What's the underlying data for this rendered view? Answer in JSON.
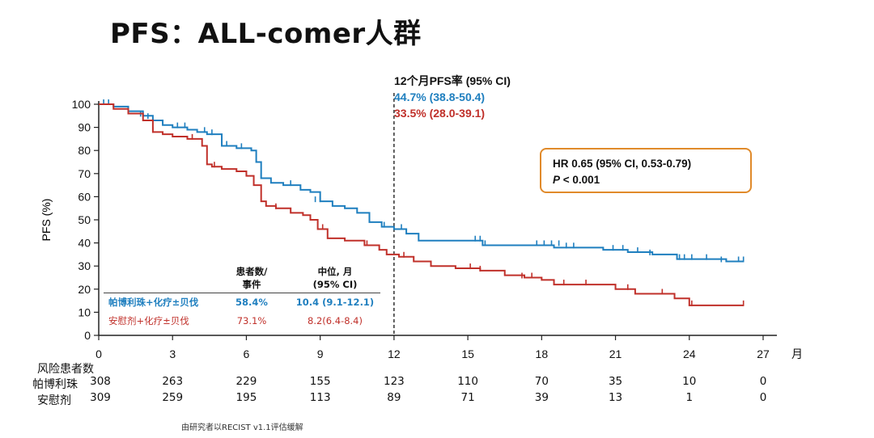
{
  "title": "PFS：ALL-comer人群",
  "chart_data": {
    "type": "line",
    "subtype": "kaplan-meier",
    "xlabel": "",
    "x_unit_label": "月",
    "ylabel": "PFS (%)",
    "xlim": [
      0,
      27
    ],
    "ylim": [
      0,
      100
    ],
    "x_ticks": [
      0,
      3,
      6,
      9,
      12,
      15,
      18,
      21,
      24,
      27
    ],
    "y_ticks": [
      0,
      10,
      20,
      30,
      40,
      50,
      60,
      70,
      80,
      90,
      100
    ],
    "reference_line_x": 12,
    "series": [
      {
        "name": "帕博利珠+化疗±贝伐",
        "color": "#1f7fbf",
        "x": [
          0,
          0.6,
          1.2,
          1.8,
          2.2,
          2.6,
          3.0,
          3.6,
          4.0,
          4.4,
          5.0,
          5.6,
          6.2,
          6.4,
          6.6,
          7.0,
          7.5,
          8.2,
          8.6,
          9.0,
          9.5,
          10.0,
          10.5,
          11.0,
          11.5,
          12.0,
          12.5,
          13.0,
          14.0,
          15.0,
          15.6,
          16.5,
          17.5,
          18.5,
          19.5,
          20.5,
          21.5,
          22.5,
          23.5,
          24.5,
          25.5,
          26.2
        ],
        "y": [
          100,
          99,
          97,
          95,
          93,
          91,
          90,
          89,
          88,
          87,
          82,
          81,
          80,
          75,
          68,
          66,
          65,
          63,
          62,
          58,
          56,
          55,
          53,
          49,
          47,
          46,
          44,
          41,
          41,
          41,
          39,
          39,
          39,
          38,
          38,
          37,
          36,
          35,
          33,
          33,
          32,
          32
        ],
        "censor_x": [
          0.2,
          0.4,
          1.7,
          2.0,
          3.2,
          3.5,
          4.3,
          4.6,
          5.2,
          5.8,
          6.6,
          7.8,
          8.8,
          9.0,
          11.6,
          12.3,
          15.3,
          15.5,
          15.7,
          17.8,
          18.1,
          18.4,
          18.7,
          19.0,
          19.3,
          20.9,
          21.3,
          21.9,
          22.4,
          23.6,
          23.8,
          24.1,
          24.7,
          25.3,
          26.0,
          26.2
        ],
        "censor_y": [
          100,
          100,
          95,
          94,
          90,
          90,
          88,
          87,
          82,
          81,
          68,
          65,
          58,
          58,
          47,
          46,
          41,
          41,
          39,
          39,
          39,
          39,
          39,
          38,
          38,
          37,
          37,
          36,
          35,
          33,
          33,
          33,
          33,
          32,
          32,
          32
        ],
        "median": "10.4 (9.1-12.1)",
        "events_pct": "58.4%",
        "landmark_12m": "44.7% (38.8-50.4)",
        "at_risk": [
          308,
          263,
          229,
          155,
          123,
          110,
          70,
          35,
          10,
          0
        ]
      },
      {
        "name": "安慰剂+化疗±贝伐",
        "color": "#c0302a",
        "x": [
          0,
          0.6,
          1.2,
          1.8,
          2.2,
          2.6,
          3.0,
          3.6,
          4.2,
          4.4,
          4.6,
          5.0,
          5.6,
          6.0,
          6.3,
          6.6,
          6.8,
          7.2,
          7.8,
          8.3,
          8.6,
          8.9,
          9.3,
          10.0,
          10.8,
          11.4,
          11.7,
          12.2,
          12.8,
          13.5,
          14.5,
          15.5,
          16.5,
          17.3,
          18.0,
          18.5,
          19.5,
          20.5,
          21.0,
          21.8,
          22.6,
          23.4,
          24.0,
          25.0,
          26.2
        ],
        "y": [
          100,
          98,
          96,
          93,
          88,
          87,
          86,
          85,
          82,
          74,
          73,
          72,
          71,
          69,
          65,
          58,
          56,
          55,
          53,
          52,
          50,
          46,
          42,
          41,
          39,
          37,
          35,
          34,
          32,
          30,
          29,
          28,
          26,
          25,
          24,
          22,
          22,
          22,
          20,
          18,
          18,
          16,
          13,
          13,
          13
        ],
        "censor_x": [
          2.2,
          3.8,
          4.7,
          7.2,
          9.1,
          10.9,
          12.4,
          15.1,
          15.5,
          17.2,
          17.6,
          18.9,
          19.8,
          21.5,
          22.9,
          24.1,
          26.2
        ],
        "censor_y": [
          88,
          85,
          73,
          55,
          46,
          39,
          34,
          29,
          28,
          25,
          25,
          22,
          22,
          20,
          18,
          13,
          13
        ],
        "median": "8.2(6.4-8.4)",
        "events_pct": "73.1%",
        "landmark_12m": "33.5% (28.0-39.1)",
        "at_risk": [
          309,
          259,
          195,
          113,
          89,
          71,
          39,
          13,
          1,
          0
        ]
      }
    ]
  },
  "landmark": {
    "heading": "12个月PFS率 (95% CI)",
    "blue": "44.7% (38.8-50.4)",
    "red": "33.5% (28.0-39.1)"
  },
  "hr_box": {
    "line1": "HR 0.65 (95% CI, 0.53-0.79)",
    "p_symbol": "P",
    "p_rest": " < 0.001",
    "border_color": "#e08a2a"
  },
  "table": {
    "col_events": "患者数/\n事件",
    "col_median": "中位, 月\n(95% CI)",
    "rows": [
      {
        "arm": "帕博利珠+化疗±贝伐",
        "events": "58.4%",
        "median": "10.4 (9.1-12.1)"
      },
      {
        "arm": "安慰剂+化疗±贝伐",
        "events": "73.1%",
        "median": "8.2(6.4-8.4)"
      }
    ]
  },
  "risk": {
    "heading": "风险患者数",
    "arm1_label": "帕博利珠",
    "arm2_label": "安慰剂"
  },
  "footnote": "由研究者以RECIST v1.1评估缓解"
}
